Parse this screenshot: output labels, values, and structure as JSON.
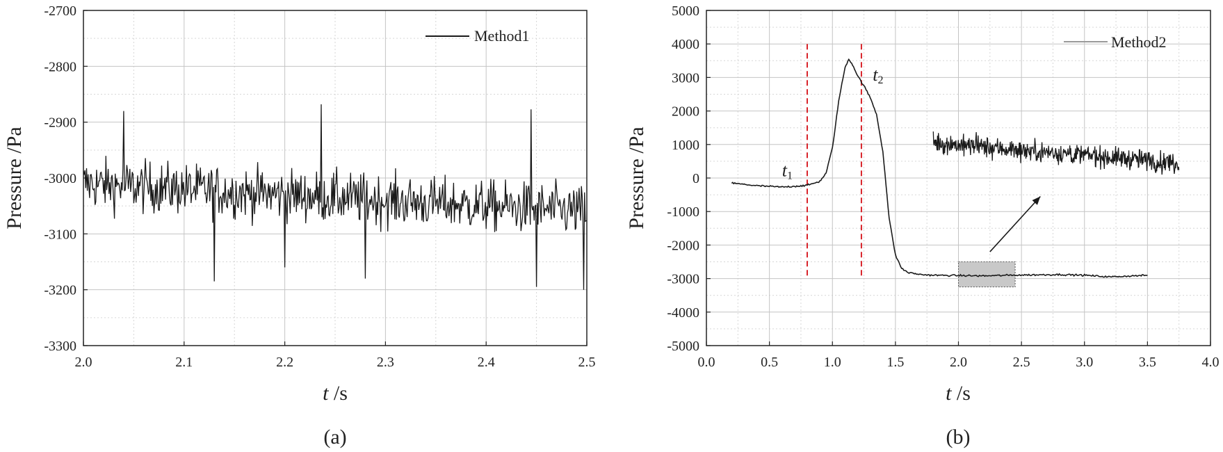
{
  "chart_data": [
    {
      "type": "line",
      "panel_label": "(a)",
      "xlabel_var": "t",
      "xlabel_unit": " /s",
      "ylabel": "Pressure /Pa",
      "xlim": [
        2.0,
        2.5
      ],
      "ylim": [
        -3300,
        -2700
      ],
      "x_ticks": [
        "2.0",
        "2.1",
        "2.2",
        "2.3",
        "2.4",
        "2.5"
      ],
      "y_ticks": [
        "-3300",
        "-3200",
        "-3100",
        "-3000",
        "-2900",
        "-2800",
        "-2700"
      ],
      "grid": true,
      "legend_position": "top-right",
      "series": [
        {
          "name": "Method1",
          "color": "#1a1a1a",
          "x_start": 2.0,
          "x_end": 2.5,
          "mean_start": -3010,
          "mean_end": -3060,
          "noise_amplitude": 45,
          "points": 650,
          "peaks": [
            [
              2.04,
              -2880
            ],
            [
              2.236,
              -2868
            ],
            [
              2.445,
              -2877
            ],
            [
              2.13,
              -3185
            ],
            [
              2.45,
              -3195
            ],
            [
              2.497,
              -3200
            ],
            [
              2.2,
              -3160
            ],
            [
              2.28,
              -3180
            ]
          ]
        }
      ]
    },
    {
      "type": "line",
      "panel_label": "(b)",
      "xlabel_var": "t",
      "xlabel_unit": " /s",
      "ylabel": "Pressure /Pa",
      "xlim": [
        0.0,
        4.0
      ],
      "ylim": [
        -5000,
        5000
      ],
      "x_ticks": [
        "0.0",
        "0.5",
        "1.0",
        "1.5",
        "2.0",
        "2.5",
        "3.0",
        "3.5",
        "4.0"
      ],
      "y_ticks": [
        "-5000",
        "-4000",
        "-3000",
        "-2000",
        "-1000",
        "0",
        "1000",
        "2000",
        "3000",
        "4000",
        "5000"
      ],
      "grid": true,
      "legend_position": "top-right",
      "series": [
        {
          "name": "Method2",
          "color": "#1a1a1a",
          "x": [
            0.2,
            0.4,
            0.6,
            0.8,
            0.9,
            0.95,
            1.0,
            1.05,
            1.1,
            1.13,
            1.16,
            1.2,
            1.25,
            1.3,
            1.35,
            1.4,
            1.45,
            1.5,
            1.55,
            1.6,
            1.7,
            1.8,
            2.0,
            2.2,
            2.4,
            2.6,
            2.8,
            3.0,
            3.2,
            3.5
          ],
          "y": [
            -150,
            -230,
            -270,
            -220,
            -100,
            150,
            900,
            2300,
            3300,
            3550,
            3380,
            3050,
            2750,
            2400,
            1900,
            800,
            -1200,
            -2300,
            -2700,
            -2820,
            -2880,
            -2900,
            -2910,
            -2920,
            -2900,
            -2890,
            -2880,
            -2900,
            -2950,
            -2900
          ]
        }
      ],
      "markers": [
        {
          "label": "t",
          "subscript": "1",
          "x": 0.8,
          "color": "#d8232a"
        },
        {
          "label": "t",
          "subscript": "2",
          "x": 1.23,
          "color": "#d8232a"
        }
      ],
      "highlight_region": {
        "x": [
          2.0,
          2.45
        ],
        "y": [
          -3250,
          -2500
        ]
      },
      "inset": {
        "description_x_range": [
          2.0,
          2.45
        ],
        "mean_start": 1050,
        "mean_end": 450,
        "noise_amplitude": 300
      }
    }
  ]
}
